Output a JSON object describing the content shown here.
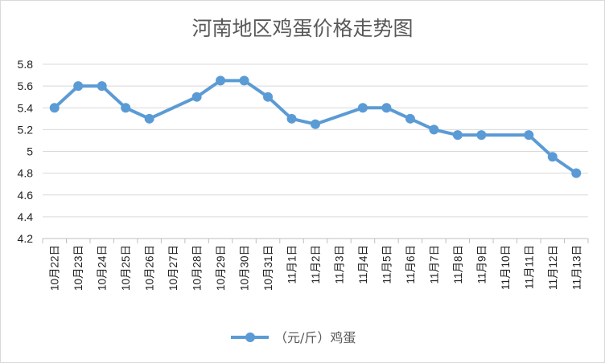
{
  "chart_data": {
    "type": "line",
    "title": "河南地区鸡蛋价格走势图",
    "categories": [
      "10月22日",
      "10月23日",
      "10月24日",
      "10月25日",
      "10月26日",
      "10月27日",
      "10月28日",
      "10月29日",
      "10月30日",
      "10月31日",
      "11月1日",
      "11月2日",
      "11月3日",
      "11月4日",
      "11月5日",
      "11月6日",
      "11月7日",
      "11月8日",
      "11月9日",
      "11月10日",
      "11月11日",
      "11月12日",
      "11月13日"
    ],
    "series": [
      {
        "name": "（元/斤）鸡蛋",
        "values": [
          5.4,
          5.6,
          5.6,
          5.4,
          5.3,
          null,
          5.5,
          5.65,
          5.65,
          5.5,
          5.3,
          5.25,
          null,
          5.4,
          5.4,
          5.3,
          5.2,
          5.15,
          5.15,
          null,
          5.15,
          4.95,
          4.8
        ]
      }
    ],
    "ylim": [
      4.2,
      5.8
    ],
    "yticks": [
      "4.2",
      "4.4",
      "4.6",
      "4.8",
      "5",
      "5.2",
      "5.4",
      "5.6",
      "5.8"
    ],
    "xlabel": "",
    "ylabel": "",
    "grid": true,
    "legend": "bottom",
    "colors": {
      "line": "#5b9bd5",
      "grid": "#d9d9d9",
      "axis": "#bfbfbf"
    }
  }
}
